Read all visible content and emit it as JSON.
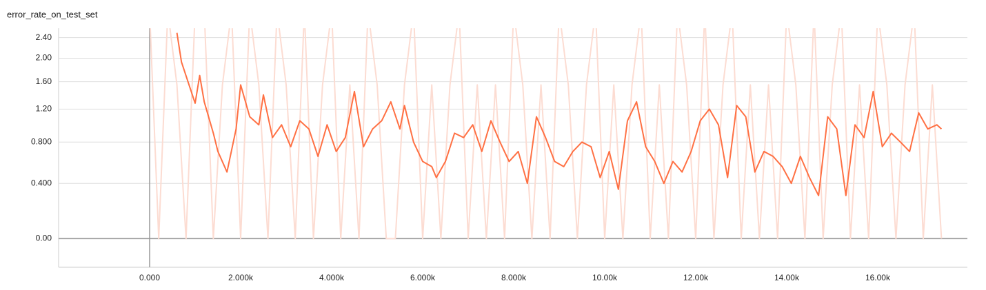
{
  "chart_data": {
    "type": "line",
    "title": "error_rate_on_test_set",
    "y_scale": "log1p",
    "grid": true,
    "xlim": [
      -2000,
      17970
    ],
    "ylim": [
      -0.16,
      2.6
    ],
    "xticks": [
      {
        "value": 0,
        "label": "0.000"
      },
      {
        "value": 2000,
        "label": "2.000k"
      },
      {
        "value": 4000,
        "label": "4.000k"
      },
      {
        "value": 6000,
        "label": "6.000k"
      },
      {
        "value": 8000,
        "label": "8.000k"
      },
      {
        "value": 10000,
        "label": "10.00k"
      },
      {
        "value": 12000,
        "label": "12.00k"
      },
      {
        "value": 14000,
        "label": "14.00k"
      },
      {
        "value": 16000,
        "label": "16.00k"
      }
    ],
    "yticks": [
      {
        "value": 0,
        "label": "0.00"
      },
      {
        "value": 0.4,
        "label": "0.400"
      },
      {
        "value": 0.8,
        "label": "0.800"
      },
      {
        "value": 1.2,
        "label": "1.20"
      },
      {
        "value": 1.6,
        "label": "1.60"
      },
      {
        "value": 2.0,
        "label": "2.00"
      },
      {
        "value": 2.4,
        "label": "2.40"
      }
    ],
    "series": [
      {
        "color": "#fcdcd2",
        "x": [
          0,
          200,
          400,
          600,
          800,
          1000,
          1200,
          1400,
          1600,
          1800,
          2000,
          2200,
          2400,
          2600,
          2800,
          3000,
          3200,
          3400,
          3600,
          3800,
          4000,
          4200,
          4400,
          4600,
          4800,
          5000,
          5200,
          5400,
          5600,
          5800,
          6000,
          6200,
          6400,
          6600,
          6800,
          7000,
          7200,
          7400,
          7600,
          7800,
          8000,
          8200,
          8400,
          8600,
          8800,
          9000,
          9200,
          9400,
          9600,
          9800,
          10000,
          10200,
          10400,
          10600,
          10800,
          11000,
          11200,
          11400,
          11600,
          11800,
          12000,
          12200,
          12400,
          12600,
          12800,
          13000,
          13200,
          13400,
          13600,
          13800,
          14000,
          14200,
          14400,
          14600,
          14800,
          15000,
          15200,
          15400,
          15600,
          15800,
          16000,
          16200,
          16400,
          16600,
          16800,
          17000,
          17200,
          17400
        ],
        "values": [
          3,
          0,
          3,
          1.55,
          0,
          3,
          3,
          0,
          1.55,
          3,
          0,
          3,
          1.55,
          0,
          3,
          1.55,
          0,
          3,
          0,
          1.55,
          3,
          0,
          1.55,
          0,
          3,
          1.55,
          0,
          0,
          1.55,
          3,
          0,
          1.55,
          0,
          1.55,
          3,
          0,
          1.55,
          0,
          1.55,
          0,
          3,
          1.55,
          0,
          1.55,
          0,
          3,
          1.55,
          0,
          1.55,
          3,
          0,
          1.55,
          0,
          1.55,
          3,
          0,
          1.55,
          0,
          3,
          1.55,
          0,
          3,
          0,
          1.55,
          3,
          0,
          1.55,
          0,
          1.55,
          0,
          3,
          1.55,
          0,
          3,
          0,
          1.55,
          3,
          0,
          1.55,
          0,
          3,
          1.55,
          0,
          1.55,
          3,
          0,
          1.55,
          0
        ]
      },
      {
        "color": "#ff7043",
        "x": [
          600,
          700,
          1000,
          1100,
          1200,
          1400,
          1500,
          1700,
          1900,
          2000,
          2200,
          2400,
          2500,
          2700,
          2900,
          3100,
          3300,
          3500,
          3700,
          3900,
          4100,
          4300,
          4500,
          4700,
          4900,
          5100,
          5300,
          5500,
          5600,
          5800,
          6000,
          6200,
          6300,
          6500,
          6700,
          6900,
          7100,
          7300,
          7500,
          7700,
          7900,
          8100,
          8300,
          8500,
          8700,
          8900,
          9100,
          9300,
          9500,
          9700,
          9900,
          10100,
          10300,
          10500,
          10700,
          10900,
          11100,
          11300,
          11500,
          11700,
          11900,
          12100,
          12300,
          12500,
          12700,
          12900,
          13100,
          13300,
          13500,
          13700,
          13900,
          14100,
          14300,
          14500,
          14700,
          14900,
          15100,
          15300,
          15500,
          15700,
          15900,
          16100,
          16300,
          16500,
          16700,
          16900,
          17100,
          17300,
          17400
        ],
        "values": [
          2.5,
          1.93,
          1.28,
          1.7,
          1.3,
          0.9,
          0.7,
          0.5,
          0.95,
          1.55,
          1.1,
          1.0,
          1.4,
          0.85,
          1.0,
          0.75,
          1.05,
          0.95,
          0.65,
          1.0,
          0.7,
          0.85,
          1.45,
          0.75,
          0.95,
          1.05,
          1.3,
          0.95,
          1.25,
          0.8,
          0.6,
          0.55,
          0.45,
          0.6,
          0.9,
          0.85,
          1.0,
          0.7,
          1.05,
          0.8,
          0.6,
          0.7,
          0.4,
          1.1,
          0.85,
          0.6,
          0.55,
          0.7,
          0.8,
          0.75,
          0.45,
          0.7,
          0.35,
          1.05,
          1.3,
          0.75,
          0.6,
          0.4,
          0.6,
          0.5,
          0.7,
          1.05,
          1.2,
          1.0,
          0.45,
          1.25,
          1.1,
          0.5,
          0.7,
          0.65,
          0.55,
          0.4,
          0.65,
          0.45,
          0.3,
          1.1,
          0.95,
          0.3,
          1.0,
          0.85,
          1.45,
          0.75,
          0.9,
          0.8,
          0.7,
          1.15,
          0.95,
          1.0,
          0.95
        ]
      }
    ]
  }
}
